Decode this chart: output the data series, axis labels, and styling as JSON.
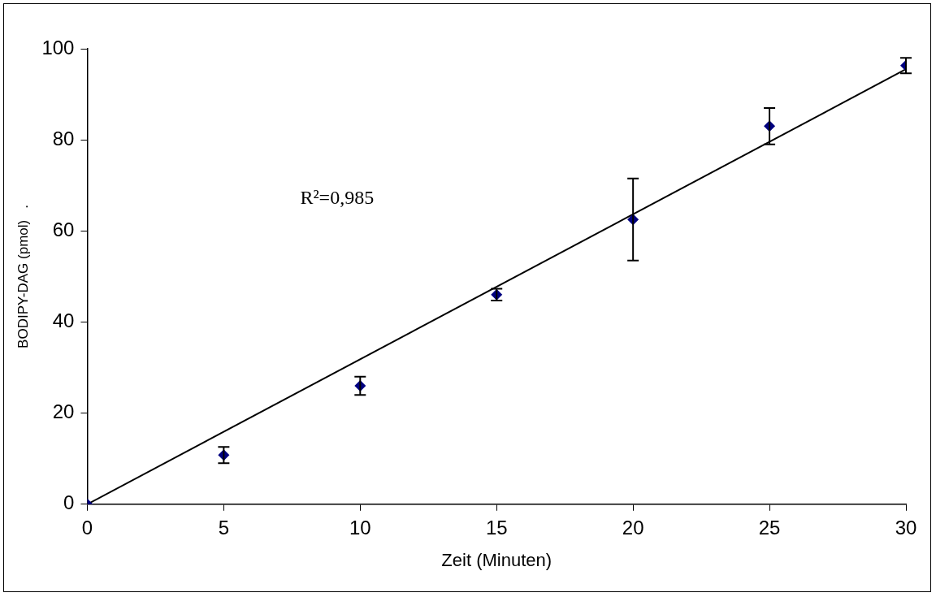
{
  "chart_data": {
    "type": "scatter",
    "xlabel": "Zeit (Minuten)",
    "ylabel": "BODIPY-DAG (pmol)   .",
    "annotations": [
      "R²=0,985"
    ],
    "xlim": [
      0,
      30
    ],
    "xticks": [
      0,
      5,
      10,
      15,
      20,
      25,
      30
    ],
    "ylim": [
      0,
      100
    ],
    "yticks": [
      0,
      20,
      40,
      60,
      80,
      100
    ],
    "grid": false,
    "legend": false,
    "marker": "diamond",
    "series": [
      {
        "type": "scatter",
        "color": "#000080",
        "x": [
          0,
          5,
          10,
          15,
          20,
          25,
          30
        ],
        "values": [
          0,
          10.8,
          26,
          46,
          62.5,
          83,
          96.3
        ],
        "errors": [
          null,
          1.8,
          2,
          1.3,
          9,
          4,
          1.7
        ]
      },
      {
        "type": "line",
        "color": "#000000",
        "x": [
          0,
          30
        ],
        "values": [
          0,
          95.5
        ],
        "marker": "none",
        "line_style": "solid"
      }
    ]
  }
}
